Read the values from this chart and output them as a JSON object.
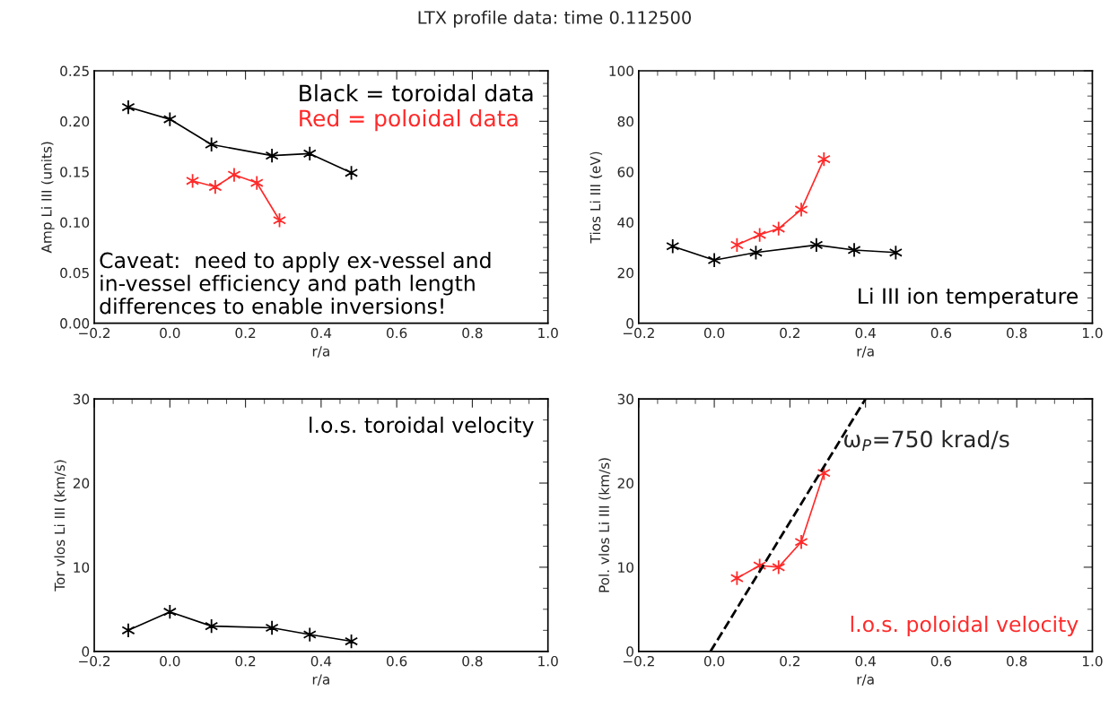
{
  "chart_data": [
    {
      "type": "line",
      "title": "LTX profile data: time 0.112500",
      "xlabel": "r/a",
      "ylabel": "Amp Li III (units)",
      "marker": "cross",
      "legend": "top right",
      "grid": false,
      "xlim": [
        -0.2,
        1.0
      ],
      "xticks": [
        {
          "value": -0.2,
          "label": "−0.2"
        },
        {
          "value": 0.0,
          "label": "0.0"
        },
        {
          "value": 0.2,
          "label": "0.2"
        },
        {
          "value": 0.4,
          "label": "0.4"
        },
        {
          "value": 0.6,
          "label": "0.6"
        },
        {
          "value": 0.8,
          "label": "0.8"
        },
        {
          "value": 1.0,
          "label": "1.0"
        }
      ],
      "ylim": [
        0,
        0.25
      ],
      "yticks": [
        {
          "value": 0,
          "label": "0.00"
        },
        {
          "value": 0.05,
          "label": "0.05"
        },
        {
          "value": 0.1,
          "label": "0.10"
        },
        {
          "value": 0.15,
          "label": "0.15"
        },
        {
          "value": 0.2,
          "label": "0.20"
        },
        {
          "value": 0.25,
          "label": "0.25"
        }
      ],
      "series": [
        {
          "name": "Black = toroidal data",
          "color": "#000000",
          "x": [
            -0.11,
            0.0,
            0.11,
            0.27,
            0.37,
            0.48
          ],
          "values": [
            0.214,
            0.202,
            0.177,
            0.166,
            0.168,
            0.149
          ]
        },
        {
          "name": "Red = poloidal data",
          "color": "#ff2a2a",
          "x": [
            0.06,
            0.12,
            0.17,
            0.23,
            0.29
          ],
          "values": [
            0.141,
            0.135,
            0.147,
            0.139,
            0.102
          ]
        }
      ],
      "annotations": [
        "Caveat:  need to apply ex-vessel and\nin-vessel efficiency and path length\ndifferences to enable inversions!"
      ]
    },
    {
      "type": "line",
      "xlabel": "r/a",
      "ylabel": "Tios Li III (eV)",
      "marker": "cross",
      "grid": false,
      "xlim": [
        -0.2,
        1.0
      ],
      "xticks": [
        {
          "value": -0.2,
          "label": "−0.2"
        },
        {
          "value": 0.0,
          "label": "0.0"
        },
        {
          "value": 0.2,
          "label": "0.2"
        },
        {
          "value": 0.4,
          "label": "0.4"
        },
        {
          "value": 0.6,
          "label": "0.6"
        },
        {
          "value": 0.8,
          "label": "0.8"
        },
        {
          "value": 1.0,
          "label": "1.0"
        }
      ],
      "ylim": [
        0,
        100
      ],
      "yticks": [
        0,
        20,
        40,
        60,
        80,
        100
      ],
      "series": [
        {
          "color": "#000000",
          "x": [
            -0.11,
            0.0,
            0.11,
            0.27,
            0.37,
            0.48
          ],
          "values": [
            30.5,
            25,
            28,
            31,
            29,
            28
          ]
        },
        {
          "color": "#ff2a2a",
          "x": [
            0.06,
            0.12,
            0.17,
            0.23,
            0.29
          ],
          "values": [
            31,
            35,
            37.5,
            45,
            65
          ]
        }
      ],
      "annotations": [
        "Li III ion temperature"
      ]
    },
    {
      "type": "line",
      "xlabel": "r/a",
      "ylabel": "Tor vlos Li III (km/s)",
      "marker": "cross",
      "grid": false,
      "xlim": [
        -0.2,
        1.0
      ],
      "xticks": [
        {
          "value": -0.2,
          "label": "−0.2"
        },
        {
          "value": 0.0,
          "label": "0.0"
        },
        {
          "value": 0.2,
          "label": "0.2"
        },
        {
          "value": 0.4,
          "label": "0.4"
        },
        {
          "value": 0.6,
          "label": "0.6"
        },
        {
          "value": 0.8,
          "label": "0.8"
        },
        {
          "value": 1.0,
          "label": "1.0"
        }
      ],
      "ylim": [
        0,
        30
      ],
      "yticks": [
        0,
        10,
        20,
        30
      ],
      "series": [
        {
          "color": "#000000",
          "x": [
            -0.11,
            0.0,
            0.11,
            0.27,
            0.37,
            0.48
          ],
          "values": [
            2.5,
            4.7,
            3.0,
            2.8,
            2.0,
            1.2
          ]
        }
      ],
      "annotations": [
        "l.o.s. toroidal velocity"
      ]
    },
    {
      "type": "line",
      "xlabel": "r/a",
      "ylabel": "Pol. vlos Li III (km/s)",
      "marker": "cross",
      "grid": false,
      "xlim": [
        -0.2,
        1.0
      ],
      "xticks": [
        {
          "value": -0.2,
          "label": "−0.2"
        },
        {
          "value": 0.0,
          "label": "0.0"
        },
        {
          "value": 0.2,
          "label": "0.2"
        },
        {
          "value": 0.4,
          "label": "0.4"
        },
        {
          "value": 0.6,
          "label": "0.6"
        },
        {
          "value": 0.8,
          "label": "0.8"
        },
        {
          "value": 1.0,
          "label": "1.0"
        }
      ],
      "ylim": [
        0,
        30
      ],
      "yticks": [
        0,
        10,
        20,
        30
      ],
      "series": [
        {
          "color": "#ff2a2a",
          "x": [
            0.06,
            0.12,
            0.17,
            0.23,
            0.29
          ],
          "values": [
            8.7,
            10.2,
            10.0,
            13.0,
            21.2
          ]
        },
        {
          "type": "line",
          "color": "#000000",
          "marker": "none",
          "line_style": "dashed",
          "x": [
            -0.01,
            0.4
          ],
          "values": [
            0,
            30
          ]
        }
      ],
      "annotations": [
        {
          "text": "ω$_{P}$=750 krad/s",
          "x": 0.34,
          "y": 25
        },
        "l.o.s. poloidal velocity"
      ]
    }
  ]
}
